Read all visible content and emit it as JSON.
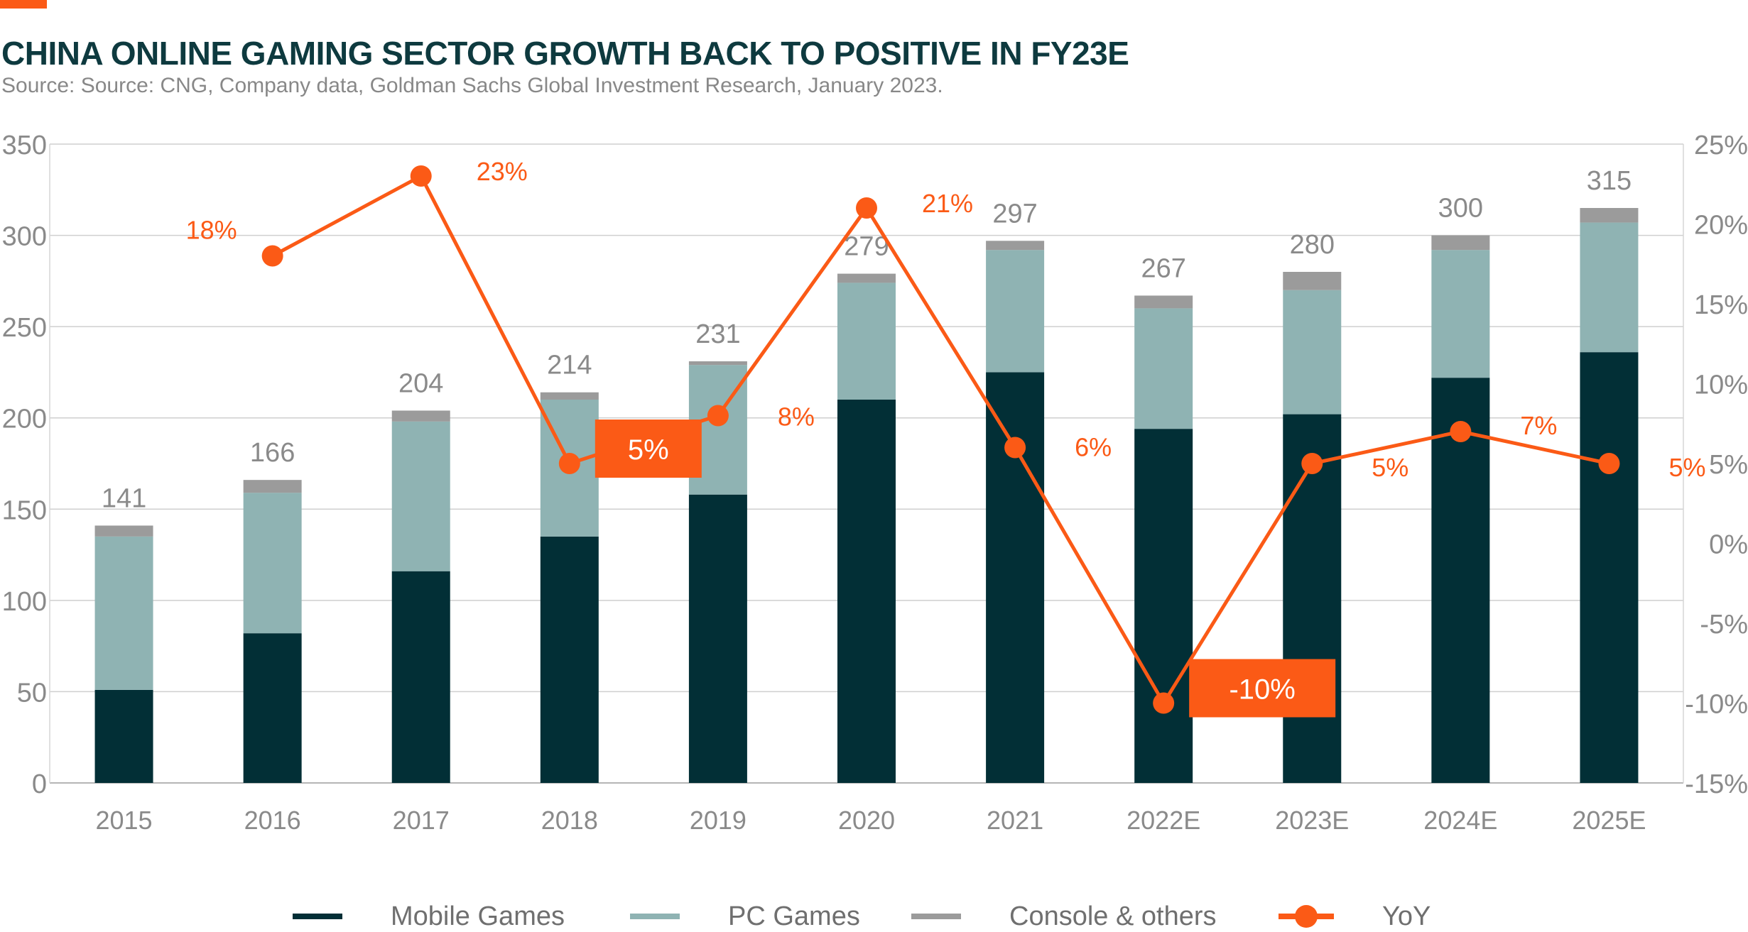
{
  "header": {
    "title": "CHINA ONLINE GAMING SECTOR GROWTH BACK TO POSITIVE IN FY23E",
    "subtitle": "Source: Source: CNG, Company data, Goldman Sachs Global Investment Research, January 2023."
  },
  "colors": {
    "accent": "#fb5a16",
    "mobile": "#022f36",
    "pc": "#8fb3b3",
    "console": "#9b9b9b",
    "yoy": "#fb5a16",
    "title": "#0e3a3f"
  },
  "chart_data": {
    "type": "bar",
    "stacked": true,
    "title": "CHINA ONLINE GAMING SECTOR GROWTH BACK TO POSITIVE IN FY23E",
    "categories": [
      "2015",
      "2016",
      "2017",
      "2018",
      "2019",
      "2020",
      "2021",
      "2022E",
      "2023E",
      "2024E",
      "2025E"
    ],
    "series": [
      {
        "name": "Mobile Games",
        "type": "bar",
        "values": [
          51,
          82,
          116,
          135,
          158,
          210,
          225,
          194,
          202,
          222,
          236
        ]
      },
      {
        "name": "PC Games",
        "type": "bar",
        "values": [
          84,
          77,
          82,
          75,
          71,
          64,
          67,
          66,
          68,
          70,
          71
        ]
      },
      {
        "name": "Console & others",
        "type": "bar",
        "values": [
          6,
          7,
          6,
          4,
          2,
          5,
          5,
          7,
          10,
          8,
          8
        ]
      },
      {
        "name": "YoY",
        "type": "line",
        "axis": "right",
        "values": [
          null,
          18,
          23,
          5,
          8,
          21,
          6,
          -10,
          5,
          7,
          5
        ]
      }
    ],
    "totals": [
      "141",
      "166",
      "204",
      "214",
      "231",
      "279",
      "297",
      "267",
      "280",
      "300",
      "315"
    ],
    "yoy_labels": [
      "",
      "18%",
      "23%",
      "5%",
      "8%",
      "21%",
      "6%",
      "-10%",
      "5%",
      "7%",
      "5%"
    ],
    "yoy_highlighted": [
      "2018",
      "2022E"
    ],
    "ylim_left": [
      0,
      350
    ],
    "yticks_left": [
      "0",
      "50",
      "100",
      "150",
      "200",
      "250",
      "300",
      "350"
    ],
    "ylim_right": [
      -15,
      25
    ],
    "yticks_right": [
      "-15%",
      "-10%",
      "-5%",
      "0%",
      "5%",
      "10%",
      "15%",
      "20%",
      "25%"
    ],
    "grid": true,
    "legend_position": "bottom"
  },
  "legend": [
    {
      "label": "Mobile Games"
    },
    {
      "label": "PC Games"
    },
    {
      "label": "Console & others"
    },
    {
      "label": "YoY"
    }
  ]
}
